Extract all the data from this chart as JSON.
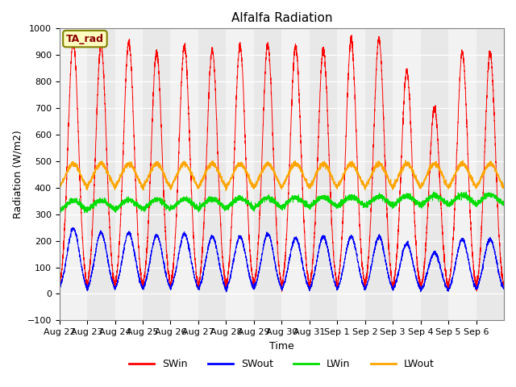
{
  "title": "Alfalfa Radiation",
  "xlabel": "Time",
  "ylabel": "Radiation (W/m2)",
  "ylim": [
    -100,
    1000
  ],
  "yticks": [
    -100,
    0,
    100,
    200,
    300,
    400,
    500,
    600,
    700,
    800,
    900,
    1000
  ],
  "legend_label": "TA_rad",
  "series": [
    "SWin",
    "SWout",
    "LWin",
    "LWout"
  ],
  "colors": [
    "red",
    "blue",
    "#00dd00",
    "orange"
  ],
  "figsize": [
    6.4,
    4.8
  ],
  "dpi": 100,
  "n_days": 16,
  "date_labels": [
    "Aug 22",
    "Aug 23",
    "Aug 24",
    "Aug 25",
    "Aug 26",
    "Aug 27",
    "Aug 28",
    "Aug 29",
    "Aug 30",
    "Aug 31",
    "Sep 1",
    "Sep 2",
    "Sep 3",
    "Sep 4",
    "Sep 5",
    "Sep 6"
  ],
  "SWin_peaks": [
    950,
    935,
    950,
    910,
    935,
    920,
    935,
    940,
    930,
    920,
    955,
    960,
    840,
    700,
    910,
    905
  ],
  "SWout_peaks": [
    245,
    230,
    230,
    220,
    225,
    215,
    215,
    225,
    210,
    215,
    215,
    215,
    190,
    155,
    205,
    205
  ],
  "LWin_base": 305,
  "LWout_base": 380,
  "background_color": "#E8E8E8"
}
